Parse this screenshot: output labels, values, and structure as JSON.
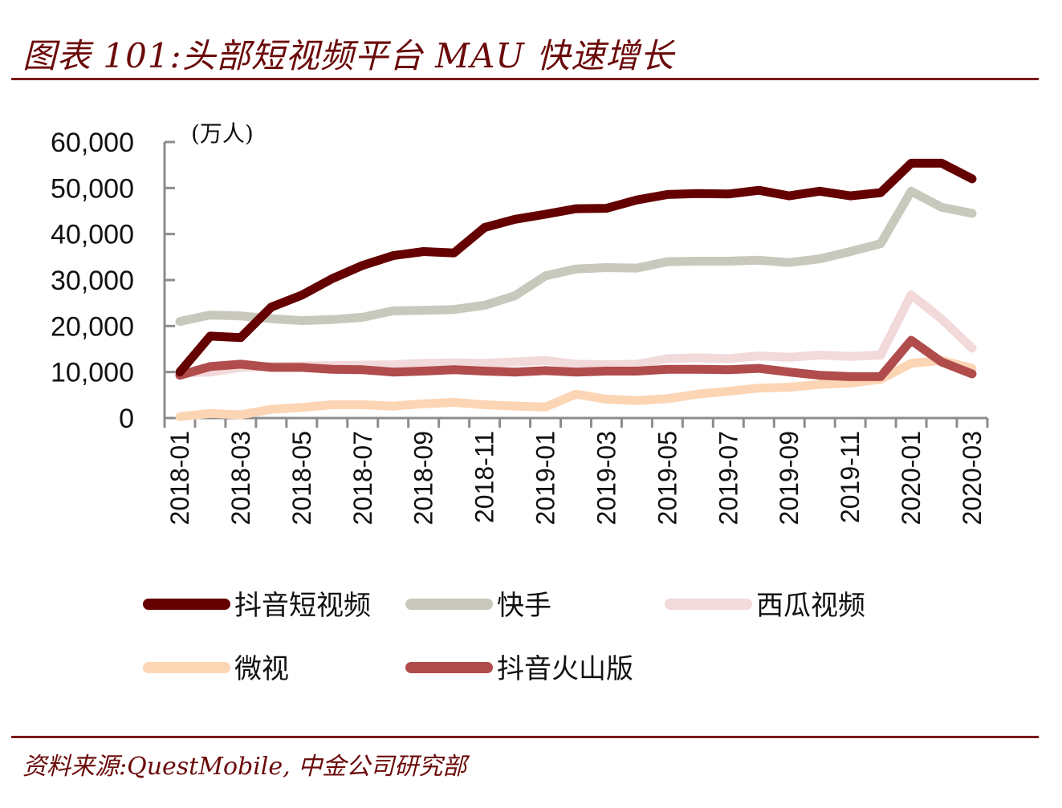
{
  "header": {
    "title": "图表 101:头部短视频平台 MAU 快速增长"
  },
  "footer": {
    "source": "资料来源:QuestMobile, 中金公司研究部"
  },
  "chart_data": {
    "type": "line",
    "title": "图表 101:头部短视频平台 MAU 快速增长",
    "unit_label": "(万人)",
    "xlabel": "",
    "ylabel": "",
    "ylim": [
      0,
      60000
    ],
    "yticks": [
      0,
      10000,
      20000,
      30000,
      40000,
      50000,
      60000
    ],
    "ytick_labels": [
      "0",
      "10,000",
      "20,000",
      "30,000",
      "40,000",
      "50,000",
      "60,000"
    ],
    "grid": false,
    "legend_position": "bottom",
    "x": [
      "2018-01",
      "2018-02",
      "2018-03",
      "2018-04",
      "2018-05",
      "2018-06",
      "2018-07",
      "2018-08",
      "2018-09",
      "2018-10",
      "2018-11",
      "2018-12",
      "2019-01",
      "2019-02",
      "2019-03",
      "2019-04",
      "2019-05",
      "2019-06",
      "2019-07",
      "2019-08",
      "2019-09",
      "2019-10",
      "2019-11",
      "2019-12",
      "2020-01",
      "2020-02",
      "2020-03"
    ],
    "xtick_labels": [
      "2018-01",
      "2018-03",
      "2018-05",
      "2018-07",
      "2018-09",
      "2018-11",
      "2019-01",
      "2019-03",
      "2019-05",
      "2019-07",
      "2019-09",
      "2019-11",
      "2020-01",
      "2020-03"
    ],
    "series": [
      {
        "name": "抖音短视频",
        "color": "#650000",
        "values": [
          10000,
          17800,
          17500,
          24100,
          26700,
          30300,
          33200,
          35300,
          36200,
          35900,
          41400,
          43200,
          44300,
          45500,
          45600,
          47400,
          48600,
          48800,
          48700,
          49500,
          48300,
          49300,
          48300,
          49000,
          55400,
          55400,
          52000
        ]
      },
      {
        "name": "快手",
        "color": "#c8c8bc",
        "values": [
          21000,
          22400,
          22200,
          21600,
          21200,
          21400,
          21900,
          23300,
          23400,
          23600,
          24500,
          26600,
          30900,
          32400,
          32700,
          32600,
          34000,
          34100,
          34100,
          34300,
          33800,
          34600,
          36200,
          37900,
          49300,
          45800,
          44500
        ]
      },
      {
        "name": "西瓜视频",
        "color": "#f2d9da",
        "values": [
          9800,
          10000,
          11000,
          11200,
          11300,
          11400,
          11500,
          11600,
          11900,
          12000,
          11900,
          12200,
          12500,
          11700,
          11600,
          11700,
          12900,
          13100,
          12900,
          13500,
          13200,
          13700,
          13400,
          13700,
          26800,
          21500,
          15200
        ]
      },
      {
        "name": "微视",
        "color": "#fcd5b5",
        "values": [
          300,
          1000,
          700,
          1900,
          2300,
          2900,
          2900,
          2600,
          3100,
          3400,
          2900,
          2600,
          2400,
          5200,
          4100,
          3800,
          4200,
          5200,
          5800,
          6500,
          6700,
          7300,
          7600,
          8400,
          11900,
          12500,
          10800
        ]
      },
      {
        "name": "抖音火山版",
        "color": "#b04c4c",
        "values": [
          9300,
          11200,
          11700,
          11000,
          11000,
          10600,
          10500,
          10000,
          10200,
          10500,
          10200,
          10000,
          10300,
          10000,
          10200,
          10200,
          10600,
          10600,
          10500,
          10800,
          10000,
          9300,
          9000,
          9000,
          16900,
          12200,
          9600
        ]
      }
    ]
  }
}
